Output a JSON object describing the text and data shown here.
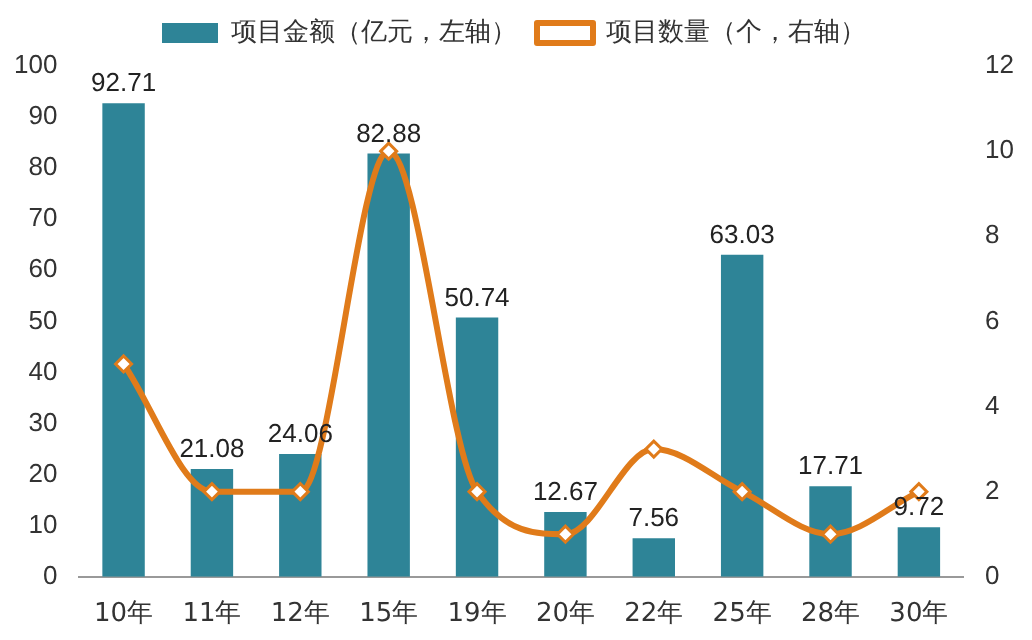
{
  "chart_data": {
    "type": "bar",
    "categories": [
      "10年",
      "11年",
      "12年",
      "15年",
      "19年",
      "20年",
      "22年",
      "25年",
      "28年",
      "30年"
    ],
    "series": [
      {
        "name": "项目金额（亿元，左轴）",
        "color": "#2e8497",
        "values": [
          92.71,
          21.08,
          24.06,
          82.88,
          50.74,
          12.67,
          7.56,
          63.03,
          17.71,
          9.72
        ],
        "value_labels": [
          "92.71",
          "21.08",
          "24.06",
          "82.88",
          "50.74",
          "12.67",
          "7.56",
          "63.03",
          "17.71",
          "9.72"
        ]
      },
      {
        "name": "项目数量（个，右轴）",
        "type": "line",
        "axis": "y2",
        "color": "#e07b1a",
        "values": [
          5,
          2,
          2,
          10,
          2,
          1,
          3,
          2,
          1,
          2
        ]
      }
    ],
    "ylim": [
      0,
      100
    ],
    "yticks": [
      0,
      10,
      20,
      30,
      40,
      50,
      60,
      70,
      80,
      90,
      100
    ],
    "y2lim": [
      0,
      12
    ],
    "y2ticks": [
      0,
      2,
      4,
      6,
      8,
      10,
      12
    ],
    "grid": false,
    "legend": "top",
    "marker": "diamond"
  }
}
